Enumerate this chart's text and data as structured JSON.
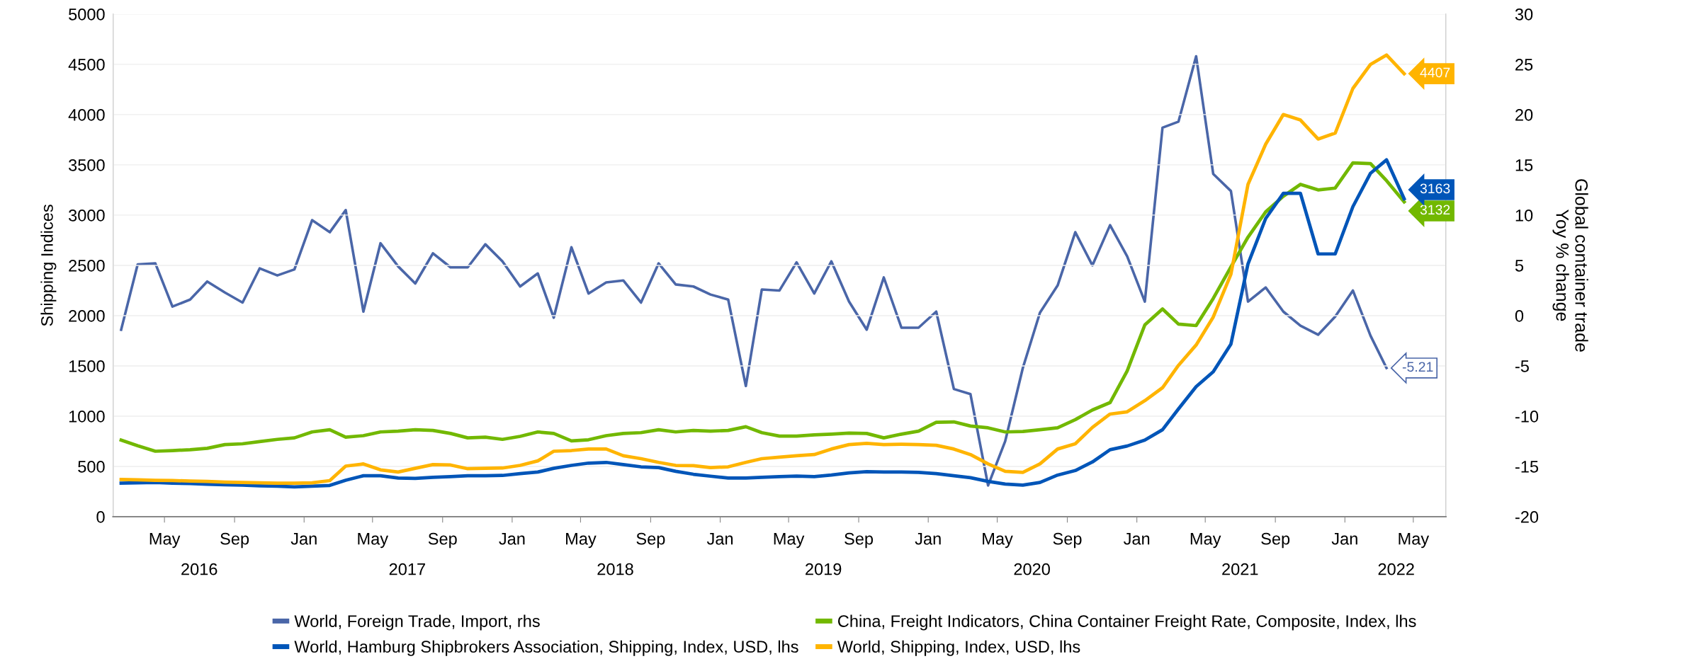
{
  "chart_data": {
    "type": "line",
    "ylabel": "Shipping Indices",
    "y2label": "Global container trade\nYoy % change",
    "x": [
      "2016-02-15",
      "2016-03-15",
      "2016-04-15",
      "2016-05-15",
      "2016-06-15",
      "2016-07-15",
      "2016-08-15",
      "2016-09-15",
      "2016-10-15",
      "2016-11-15",
      "2016-12-15",
      "2017-01-15",
      "2017-02-15",
      "2017-03-15",
      "2017-04-15",
      "2017-05-15",
      "2017-06-15",
      "2017-07-15",
      "2017-08-15",
      "2017-09-15",
      "2017-10-15",
      "2017-11-15",
      "2017-12-15",
      "2018-01-15",
      "2018-02-15",
      "2018-03-15",
      "2018-04-15",
      "2018-05-15",
      "2018-06-15",
      "2018-07-15",
      "2018-08-15",
      "2018-09-15",
      "2018-10-15",
      "2018-11-15",
      "2018-12-15",
      "2019-01-15",
      "2019-02-15",
      "2019-03-15",
      "2019-04-15",
      "2019-05-15",
      "2019-06-15",
      "2019-07-15",
      "2019-08-15",
      "2019-09-15",
      "2019-10-15",
      "2019-11-15",
      "2019-12-15",
      "2020-01-15",
      "2020-02-15",
      "2020-03-15",
      "2020-04-15",
      "2020-05-15",
      "2020-06-15",
      "2020-07-15",
      "2020-08-15",
      "2020-09-15",
      "2020-10-15",
      "2020-11-15",
      "2020-12-15",
      "2021-01-15",
      "2021-02-15",
      "2021-03-15",
      "2021-04-15",
      "2021-05-15",
      "2021-06-15",
      "2021-07-15",
      "2021-08-15",
      "2021-09-15",
      "2021-10-15",
      "2021-11-15",
      "2021-12-15",
      "2022-01-15",
      "2022-02-15",
      "2022-03-15",
      "2022-04-15"
    ],
    "series": [
      {
        "name": "World, Foreign Trade, Import, rhs",
        "color": "#4a66a8",
        "axis": "y2",
        "values": [
          -1.4,
          5.1,
          5.2,
          0.9,
          1.6,
          3.4,
          2.3,
          1.3,
          4.7,
          4.0,
          4.6,
          9.5,
          8.3,
          10.5,
          0.4,
          7.2,
          4.9,
          3.2,
          6.2,
          4.8,
          4.8,
          7.1,
          5.4,
          2.9,
          4.2,
          -0.2,
          6.8,
          2.2,
          3.3,
          3.5,
          1.3,
          5.2,
          3.1,
          2.9,
          2.1,
          1.6,
          -7.0,
          2.6,
          2.5,
          5.3,
          2.2,
          5.4,
          1.4,
          -1.4,
          3.8,
          -1.2,
          -1.2,
          0.4,
          -7.3,
          -7.8,
          -16.9,
          -12.5,
          -5.2,
          0.3,
          3.0,
          8.3,
          5.0,
          9.0,
          5.9,
          1.4,
          18.7,
          19.3,
          25.8,
          14.1,
          12.4,
          1.4,
          2.8,
          0.4,
          -1.0,
          -1.9,
          -0.1,
          2.5,
          -2.0,
          -5.21,
          null
        ],
        "value_labels": [
          null,
          null,
          null,
          null,
          null,
          null,
          null,
          null,
          null,
          null,
          null,
          null,
          null,
          null,
          null,
          null,
          null,
          null,
          null,
          null,
          null,
          null,
          null,
          null,
          null,
          null,
          null,
          null,
          null,
          null,
          null,
          null,
          null,
          null,
          null,
          null,
          null,
          null,
          null,
          null,
          null,
          null,
          null,
          null,
          null,
          null,
          null,
          null,
          null,
          null,
          null,
          null,
          null,
          null,
          null,
          null,
          null,
          null,
          null,
          null,
          null,
          null,
          null,
          null,
          null,
          null,
          null,
          null,
          null,
          null,
          null,
          null,
          null,
          "-5.21",
          null
        ]
      },
      {
        "name": "China, Freight Indicators, China Container Freight Rate, Composite, Index, lhs",
        "color": "#72b800",
        "values": [
          762,
          706,
          651,
          658,
          666,
          680,
          717,
          725,
          747,
          769,
          784,
          843,
          865,
          791,
          806,
          843,
          851,
          865,
          858,
          828,
          784,
          791,
          769,
          799,
          843,
          828,
          754,
          765,
          806,
          828,
          836,
          865,
          843,
          858,
          851,
          858,
          895,
          836,
          802,
          802,
          814,
          821,
          832,
          828,
          784,
          821,
          851,
          939,
          943,
          902,
          884,
          843,
          847,
          865,
          884,
          965,
          1061,
          1135,
          1450,
          1908,
          2067,
          1916,
          1901,
          2171,
          2485,
          2781,
          3032,
          3188,
          3306,
          3251,
          3269,
          3520,
          3513,
          3343,
          3132
        ],
        "value_labels": [
          null,
          null,
          null,
          null,
          null,
          null,
          null,
          null,
          null,
          null,
          null,
          null,
          null,
          null,
          null,
          null,
          null,
          null,
          null,
          null,
          null,
          null,
          null,
          null,
          null,
          null,
          null,
          null,
          null,
          null,
          null,
          null,
          null,
          null,
          null,
          null,
          null,
          null,
          null,
          null,
          null,
          null,
          null,
          null,
          null,
          null,
          null,
          null,
          null,
          null,
          null,
          null,
          null,
          null,
          null,
          null,
          null,
          null,
          null,
          null,
          null,
          null,
          null,
          null,
          null,
          null,
          null,
          null,
          null,
          null,
          null,
          null,
          null,
          null,
          "3132"
        ]
      },
      {
        "name": "World, Hamburg Shipbrokers Association, Shipping, Index, USD, lhs",
        "color": "#0055b8",
        "values": [
          333,
          337,
          340,
          333,
          329,
          322,
          318,
          314,
          307,
          303,
          296,
          303,
          311,
          362,
          407,
          407,
          385,
          381,
          392,
          399,
          407,
          407,
          410,
          429,
          444,
          481,
          510,
          533,
          540,
          518,
          496,
          488,
          451,
          422,
          403,
          385,
          385,
          392,
          399,
          403,
          399,
          414,
          436,
          447,
          444,
          444,
          440,
          429,
          407,
          388,
          351,
          325,
          314,
          340,
          414,
          459,
          544,
          666,
          703,
          762,
          865,
          1072,
          1294,
          1442,
          1716,
          2515,
          2966,
          3217,
          3217,
          2614,
          2614,
          3084,
          3417,
          3550,
          3163
        ],
        "value_labels": [
          null,
          null,
          null,
          null,
          null,
          null,
          null,
          null,
          null,
          null,
          null,
          null,
          null,
          null,
          null,
          null,
          null,
          null,
          null,
          null,
          null,
          null,
          null,
          null,
          null,
          null,
          null,
          null,
          null,
          null,
          null,
          null,
          null,
          null,
          null,
          null,
          null,
          null,
          null,
          null,
          null,
          null,
          null,
          null,
          null,
          null,
          null,
          null,
          null,
          null,
          null,
          null,
          null,
          null,
          null,
          null,
          null,
          null,
          null,
          null,
          null,
          null,
          null,
          null,
          null,
          null,
          null,
          null,
          null,
          null,
          null,
          null,
          null,
          null,
          "3163"
        ]
      },
      {
        "name": "World, Shipping, Index, USD, lhs",
        "color": "#ffb400",
        "values": [
          370,
          366,
          362,
          359,
          355,
          351,
          344,
          340,
          337,
          333,
          333,
          337,
          359,
          503,
          525,
          466,
          444,
          481,
          518,
          514,
          477,
          481,
          484,
          510,
          555,
          651,
          658,
          673,
          673,
          606,
          577,
          540,
          510,
          507,
          488,
          496,
          540,
          577,
          592,
          606,
          618,
          673,
          717,
          729,
          717,
          721,
          717,
          710,
          673,
          618,
          525,
          451,
          440,
          525,
          673,
          725,
          888,
          1021,
          1043,
          1154,
          1283,
          1505,
          1708,
          1986,
          2411,
          3306,
          3705,
          4001,
          3946,
          3757,
          3816,
          4260,
          4500,
          4593,
          4407
        ],
        "value_labels": [
          null,
          null,
          null,
          null,
          null,
          null,
          null,
          null,
          null,
          null,
          null,
          null,
          null,
          null,
          null,
          null,
          null,
          null,
          null,
          null,
          null,
          null,
          null,
          null,
          null,
          null,
          null,
          null,
          null,
          null,
          null,
          null,
          null,
          null,
          null,
          null,
          null,
          null,
          null,
          null,
          null,
          null,
          null,
          null,
          null,
          null,
          null,
          null,
          null,
          null,
          null,
          null,
          null,
          null,
          null,
          null,
          null,
          null,
          null,
          null,
          null,
          null,
          null,
          null,
          null,
          null,
          null,
          null,
          null,
          null,
          null,
          null,
          null,
          null,
          "4407"
        ]
      }
    ],
    "xlim": [
      "2016-02-01",
      "2022-06-27"
    ],
    "xticks": [
      {
        "value": "2016-05-01",
        "label": "May"
      },
      {
        "value": "2016-09-01",
        "label": "Sep"
      },
      {
        "value": "2017-01-01",
        "label": "Jan"
      },
      {
        "value": "2017-05-01",
        "label": "May"
      },
      {
        "value": "2017-09-01",
        "label": "Sep"
      },
      {
        "value": "2018-01-01",
        "label": "Jan"
      },
      {
        "value": "2018-05-01",
        "label": "May"
      },
      {
        "value": "2018-09-01",
        "label": "Sep"
      },
      {
        "value": "2019-01-01",
        "label": "Jan"
      },
      {
        "value": "2019-05-01",
        "label": "May"
      },
      {
        "value": "2019-09-01",
        "label": "Sep"
      },
      {
        "value": "2020-01-01",
        "label": "Jan"
      },
      {
        "value": "2020-05-01",
        "label": "May"
      },
      {
        "value": "2020-09-01",
        "label": "Sep"
      },
      {
        "value": "2021-01-01",
        "label": "Jan"
      },
      {
        "value": "2021-05-01",
        "label": "May"
      },
      {
        "value": "2021-09-01",
        "label": "Sep"
      },
      {
        "value": "2022-01-01",
        "label": "Jan"
      },
      {
        "value": "2022-05-01",
        "label": "May"
      }
    ],
    "ylim": [
      0,
      5000
    ],
    "yticks": [
      0,
      500,
      1000,
      1500,
      2000,
      2500,
      3000,
      3500,
      4000,
      4500,
      5000
    ],
    "y2lim": [
      -20,
      30
    ],
    "y2ticks": [
      -20,
      -15,
      -10,
      -5,
      0,
      5,
      10,
      15,
      20,
      25,
      30
    ],
    "x2lim": [
      "2016-02-01",
      "2022-06-27"
    ],
    "x2ticks": [
      {
        "value": "2016-07-01",
        "label": "2016"
      },
      {
        "value": "2017-07-01",
        "label": "2017"
      },
      {
        "value": "2018-07-01",
        "label": "2018"
      },
      {
        "value": "2019-07-01",
        "label": "2019"
      },
      {
        "value": "2020-07-01",
        "label": "2020"
      },
      {
        "value": "2021-07-01",
        "label": "2021"
      },
      {
        "value": "2022-04-01",
        "label": "2022"
      }
    ],
    "grid": "y",
    "legend": "bottom",
    "marker": "none",
    "line_style": "solid"
  }
}
